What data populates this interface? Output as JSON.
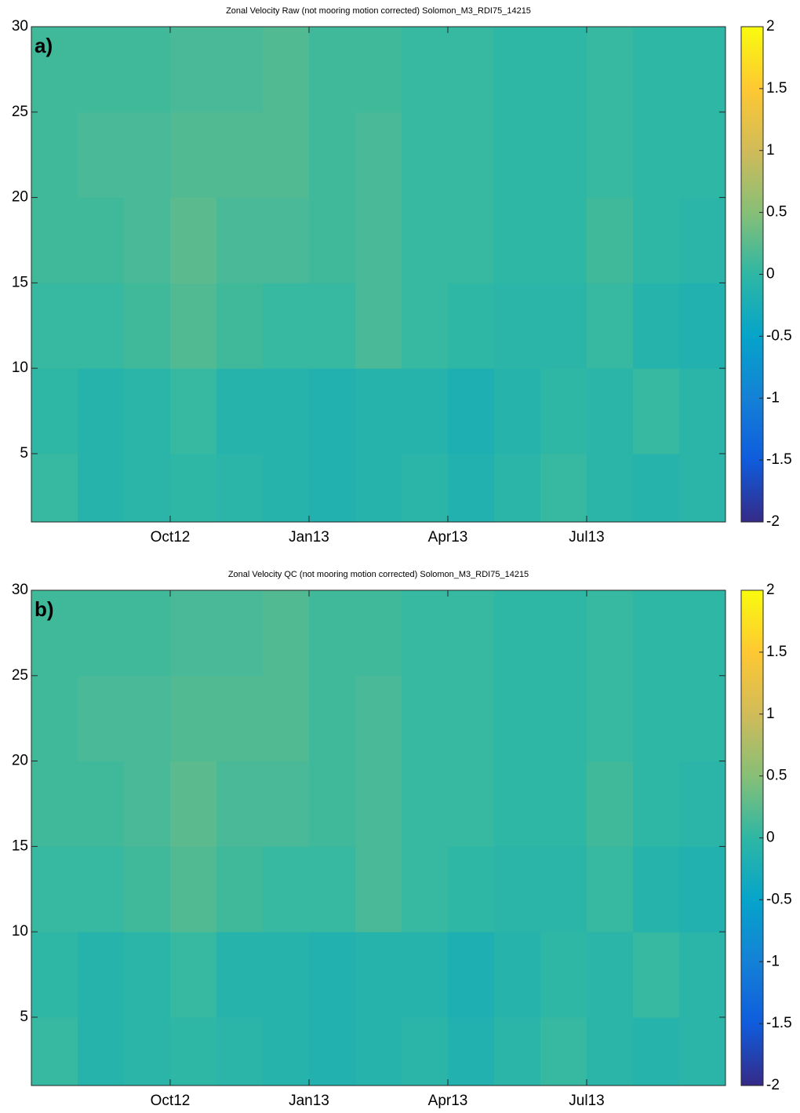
{
  "chart_data": [
    {
      "type": "heatmap",
      "title": "Zonal Velocity Raw (not mooring motion corrected) Solomon_M3_RDI75_14215",
      "panel_label": "a)",
      "categories": [
        null,
        null,
        null,
        "Oct12",
        null,
        null,
        "Jan13",
        null,
        null,
        "Apr13",
        null,
        null,
        "Jul13",
        null,
        null
      ],
      "ybins": [
        1,
        5,
        10,
        15,
        20,
        25,
        30
      ],
      "ylim": [
        1,
        30
      ],
      "yticks": [
        5,
        10,
        15,
        20,
        25,
        30
      ],
      "values": [
        [
          0.05,
          -0.1,
          -0.05,
          0.0,
          -0.05,
          -0.1,
          -0.15,
          -0.1,
          -0.05,
          -0.15,
          -0.05,
          0.05,
          -0.05,
          -0.1,
          -0.05
        ],
        [
          0.0,
          -0.1,
          -0.05,
          0.05,
          -0.1,
          -0.1,
          -0.15,
          -0.1,
          -0.1,
          -0.2,
          -0.1,
          0.0,
          -0.05,
          0.05,
          -0.05
        ],
        [
          0.05,
          0.05,
          0.1,
          0.2,
          0.1,
          0.05,
          0.05,
          0.15,
          0.05,
          0.0,
          -0.05,
          -0.05,
          0.05,
          -0.1,
          -0.15
        ],
        [
          0.1,
          0.1,
          0.15,
          0.25,
          0.15,
          0.15,
          0.1,
          0.15,
          0.05,
          0.05,
          0.0,
          0.0,
          0.1,
          0.0,
          -0.05
        ],
        [
          0.1,
          0.15,
          0.15,
          0.2,
          0.2,
          0.2,
          0.1,
          0.15,
          0.05,
          0.05,
          0.0,
          0.0,
          0.05,
          0.0,
          0.0
        ],
        [
          0.1,
          0.1,
          0.1,
          0.15,
          0.15,
          0.2,
          0.1,
          0.1,
          0.05,
          0.05,
          0.0,
          0.0,
          0.05,
          0.0,
          0.0
        ]
      ],
      "clim": [
        -2,
        2
      ],
      "cticks": [
        -2,
        -1.5,
        -1,
        -0.5,
        0,
        0.5,
        1,
        1.5,
        2
      ],
      "colormap": [
        "#352a87",
        "#0f5cdd",
        "#1481d6",
        "#06a4ca",
        "#2eb7a4",
        "#87bf77",
        "#d1bb59",
        "#fec832",
        "#f9fb0e"
      ]
    },
    {
      "type": "heatmap",
      "title": "Zonal Velocity QC (not mooring motion corrected) Solomon_M3_RDI75_14215",
      "panel_label": "b)",
      "categories": [
        null,
        null,
        null,
        "Oct12",
        null,
        null,
        "Jan13",
        null,
        null,
        "Apr13",
        null,
        null,
        "Jul13",
        null,
        null
      ],
      "ybins": [
        1,
        5,
        10,
        15,
        20,
        25,
        30
      ],
      "ylim": [
        1,
        30
      ],
      "yticks": [
        5,
        10,
        15,
        20,
        25,
        30
      ],
      "values": [
        [
          0.05,
          -0.1,
          -0.05,
          0.0,
          -0.05,
          -0.1,
          -0.15,
          -0.1,
          -0.05,
          -0.15,
          -0.05,
          0.05,
          -0.05,
          -0.1,
          -0.05
        ],
        [
          0.0,
          -0.1,
          -0.05,
          0.05,
          -0.1,
          -0.1,
          -0.15,
          -0.1,
          -0.1,
          -0.2,
          -0.1,
          0.0,
          -0.05,
          0.05,
          -0.05
        ],
        [
          0.05,
          0.05,
          0.1,
          0.2,
          0.1,
          0.05,
          0.05,
          0.15,
          0.05,
          0.0,
          -0.05,
          -0.05,
          0.05,
          -0.1,
          -0.15
        ],
        [
          0.1,
          0.1,
          0.15,
          0.25,
          0.15,
          0.15,
          0.1,
          0.15,
          0.05,
          0.05,
          0.0,
          0.0,
          0.1,
          0.0,
          -0.05
        ],
        [
          0.1,
          0.15,
          0.15,
          0.2,
          0.2,
          0.2,
          0.1,
          0.15,
          0.05,
          0.05,
          0.0,
          0.0,
          0.05,
          0.0,
          0.0
        ],
        [
          0.1,
          0.1,
          0.1,
          0.15,
          0.15,
          0.2,
          0.1,
          0.1,
          0.05,
          0.05,
          0.0,
          0.0,
          0.05,
          0.0,
          0.0
        ]
      ],
      "clim": [
        -2,
        2
      ],
      "cticks": [
        -2,
        -1.5,
        -1,
        -0.5,
        0,
        0.5,
        1,
        1.5,
        2
      ],
      "colormap": [
        "#352a87",
        "#0f5cdd",
        "#1481d6",
        "#06a4ca",
        "#2eb7a4",
        "#87bf77",
        "#d1bb59",
        "#fec832",
        "#f9fb0e"
      ]
    }
  ]
}
